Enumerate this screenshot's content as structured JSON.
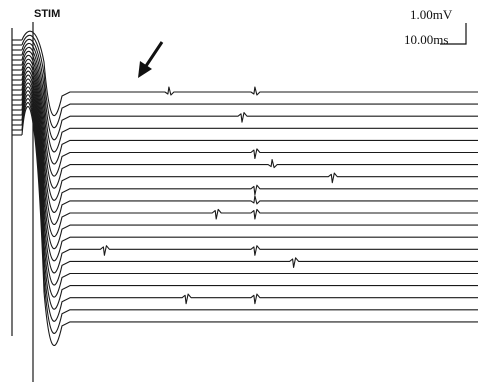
{
  "figure": {
    "stim_label": "STIM",
    "scale_bar": {
      "voltage": "1.00mV",
      "time": "10.00ms"
    }
  },
  "chart_data": {
    "type": "line",
    "title": "",
    "xlabel": "",
    "ylabel": "",
    "trace_count": 20,
    "stimulus_label": "STIM",
    "amplitude_scale": "1.00mV",
    "time_scale": "10.00ms",
    "late_deflections": [
      {
        "trace": 1,
        "time_ms": 23
      },
      {
        "trace": 1,
        "time_ms": 43
      },
      {
        "trace": 3,
        "time_ms": 40
      },
      {
        "trace": 6,
        "time_ms": 43
      },
      {
        "trace": 7,
        "time_ms": 47
      },
      {
        "trace": 8,
        "time_ms": 61
      },
      {
        "trace": 9,
        "time_ms": 43
      },
      {
        "trace": 10,
        "time_ms": 43
      },
      {
        "trace": 11,
        "time_ms": 34
      },
      {
        "trace": 11,
        "time_ms": 43
      },
      {
        "trace": 14,
        "time_ms": 8
      },
      {
        "trace": 14,
        "time_ms": 43
      },
      {
        "trace": 15,
        "time_ms": 52
      },
      {
        "trace": 18,
        "time_ms": 27
      },
      {
        "trace": 18,
        "time_ms": 43
      }
    ],
    "grid": false
  }
}
